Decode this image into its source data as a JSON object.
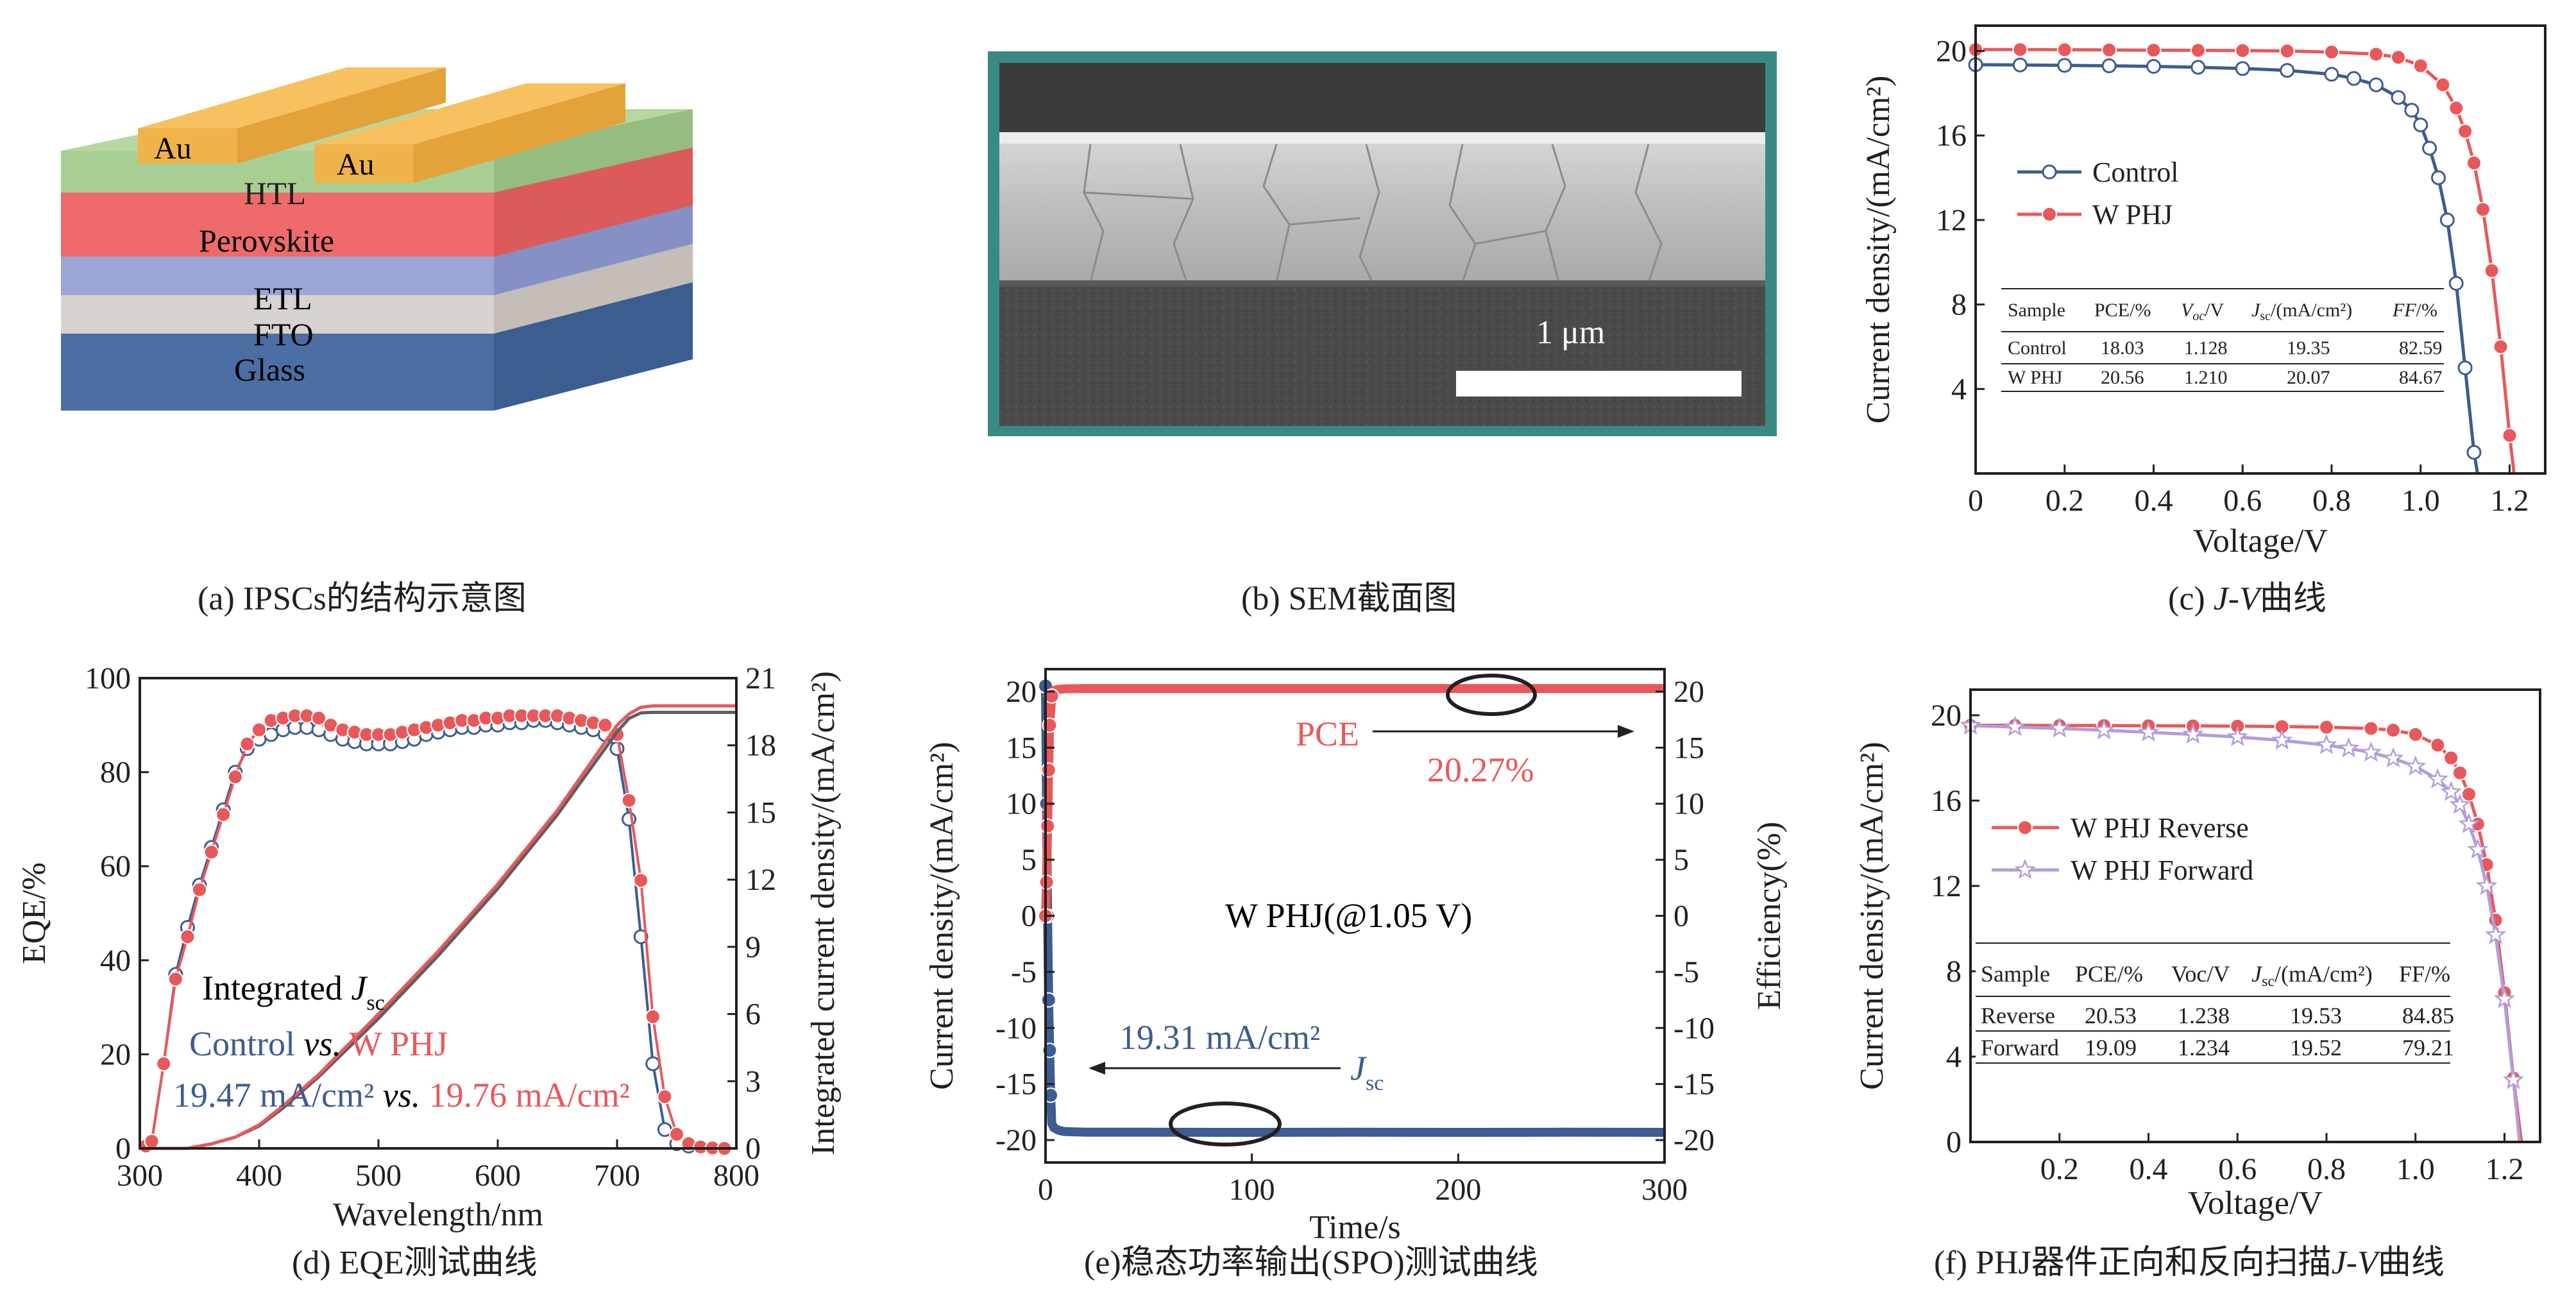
{
  "colors": {
    "blue": "#3d5c8f",
    "red": "#e8585a",
    "pink": "#f08080",
    "lavender": "#b39ddb",
    "dark": "#231f20",
    "grey": "#5f5f5f"
  },
  "panel_a": {
    "caption": "(a) IPSCs的结构示意图",
    "layers": [
      "Au",
      "Au",
      "HTL",
      "Perovskite",
      "ETL",
      "FTO",
      "Glass"
    ]
  },
  "panel_b": {
    "caption": "(b) SEM截面图",
    "scale_bar": "1 μm"
  },
  "panel_c": {
    "caption_prefix": "(c) ",
    "caption_italic": "J-V",
    "caption_suffix": "曲线"
  },
  "panel_d": {
    "caption": "(d) EQE测试曲线"
  },
  "panel_e": {
    "caption": "(e)稳态功率输出(SPO)测试曲线"
  },
  "panel_f": {
    "caption_prefix": "(f) PHJ器件正向和反向扫描",
    "caption_italic": "J-V",
    "caption_suffix": "曲线"
  },
  "chart_data": [
    {
      "id": "c",
      "type": "line",
      "xlabel": "Voltage/V",
      "ylabel": "Current density/(mA/cm²)",
      "xlim": [
        0,
        1.28
      ],
      "ylim": [
        0,
        21.2
      ],
      "xticks": [
        0,
        0.2,
        0.4,
        0.6,
        0.8,
        1.0,
        1.2
      ],
      "xtick_labels": [
        "0",
        "0.2",
        "0.4",
        "0.6",
        "0.8",
        "1.0",
        "1.2"
      ],
      "yticks": [
        4,
        8,
        12,
        16,
        20
      ],
      "series": [
        {
          "name": "Control",
          "color": "#3d5c8f",
          "marker": "open-circle",
          "x": [
            0,
            0.1,
            0.2,
            0.3,
            0.4,
            0.5,
            0.6,
            0.7,
            0.8,
            0.85,
            0.9,
            0.95,
            0.98,
            1.0,
            1.02,
            1.04,
            1.06,
            1.08,
            1.1,
            1.12,
            1.128
          ],
          "y": [
            19.35,
            19.34,
            19.32,
            19.3,
            19.27,
            19.23,
            19.17,
            19.08,
            18.9,
            18.7,
            18.4,
            17.8,
            17.2,
            16.5,
            15.4,
            14.0,
            12.0,
            9.0,
            5.0,
            1.0,
            0
          ]
        },
        {
          "name": "W PHJ",
          "color": "#e8585a",
          "marker": "filled-circle",
          "x": [
            0,
            0.1,
            0.2,
            0.3,
            0.4,
            0.5,
            0.6,
            0.7,
            0.8,
            0.9,
            0.95,
            1.0,
            1.05,
            1.08,
            1.1,
            1.12,
            1.14,
            1.16,
            1.18,
            1.2,
            1.21
          ],
          "y": [
            20.07,
            20.07,
            20.06,
            20.05,
            20.04,
            20.03,
            20.02,
            20.0,
            19.95,
            19.85,
            19.7,
            19.3,
            18.4,
            17.3,
            16.2,
            14.7,
            12.5,
            9.6,
            6.0,
            1.8,
            0
          ]
        }
      ],
      "table": {
        "headers": [
          "Sample",
          "PCE/%",
          "Voc/V",
          "Jsc/(mA/cm²)",
          "FF/%"
        ],
        "rows": [
          [
            "Control",
            "18.03",
            "1.128",
            "19.35",
            "82.59"
          ],
          [
            "W PHJ",
            "20.56",
            "1.210",
            "20.07",
            "84.67"
          ]
        ]
      }
    },
    {
      "id": "d",
      "type": "line",
      "xlabel": "Wavelength/nm",
      "ylabel": "EQE/%",
      "ylabel_right": "Integrated current density/(mA/cm²)",
      "xlim": [
        300,
        800
      ],
      "ylim": [
        0,
        100
      ],
      "ylim_right": [
        0,
        21
      ],
      "xticks": [
        300,
        400,
        500,
        600,
        700,
        800
      ],
      "yticks": [
        0,
        20,
        40,
        60,
        80,
        100
      ],
      "yticks_right": [
        0,
        3,
        6,
        9,
        12,
        15,
        18,
        21
      ],
      "series": [
        {
          "name": "Control EQE",
          "color": "#3d5c8f",
          "marker": "open-circle",
          "axis": "left",
          "x": [
            305,
            310,
            320,
            330,
            340,
            350,
            360,
            370,
            380,
            390,
            400,
            410,
            420,
            430,
            440,
            450,
            460,
            470,
            480,
            490,
            500,
            510,
            520,
            530,
            540,
            550,
            560,
            570,
            580,
            590,
            600,
            610,
            620,
            630,
            640,
            650,
            660,
            670,
            680,
            690,
            700,
            710,
            720,
            730,
            740,
            750,
            760,
            770,
            780,
            790
          ],
          "y": [
            0.5,
            1.5,
            18,
            37,
            47,
            56,
            64,
            72,
            80,
            85,
            87,
            88,
            89,
            89.5,
            89.5,
            89,
            88,
            87,
            86.5,
            86,
            86,
            86,
            86.5,
            87,
            88,
            88.5,
            89,
            89.5,
            89.5,
            90,
            90,
            90.5,
            90.5,
            91,
            91,
            90.5,
            90,
            89.5,
            89,
            88,
            85,
            70,
            45,
            18,
            4,
            1,
            0.5,
            0.2,
            0,
            0
          ]
        },
        {
          "name": "W PHJ EQE",
          "color": "#e8585a",
          "marker": "filled-circle",
          "axis": "left",
          "x": [
            305,
            310,
            320,
            330,
            340,
            350,
            360,
            370,
            380,
            390,
            400,
            410,
            420,
            430,
            440,
            450,
            460,
            470,
            480,
            490,
            500,
            510,
            520,
            530,
            540,
            550,
            560,
            570,
            580,
            590,
            600,
            610,
            620,
            630,
            640,
            650,
            660,
            670,
            680,
            690,
            700,
            710,
            720,
            730,
            740,
            750,
            760,
            770,
            780,
            790
          ],
          "y": [
            0.5,
            1.5,
            18,
            36,
            45,
            55,
            63,
            71,
            79,
            86,
            89,
            91,
            91.5,
            92,
            92,
            91.5,
            90,
            89,
            88.5,
            88,
            88,
            88,
            88.5,
            89,
            89.5,
            90,
            90.5,
            91,
            91,
            91.5,
            91.5,
            92,
            92,
            92,
            92,
            92,
            91.5,
            91,
            90.5,
            90,
            88,
            74,
            57,
            28,
            11,
            3,
            1,
            0.3,
            0.1,
            0
          ]
        },
        {
          "name": "Control Integrated Jsc",
          "color": "#5f5f5f",
          "axis": "right",
          "x": [
            300,
            340,
            360,
            380,
            400,
            420,
            450,
            500,
            550,
            600,
            650,
            700,
            710,
            720,
            730,
            740,
            750,
            800
          ],
          "y": [
            0,
            0,
            0.2,
            0.5,
            1.0,
            1.8,
            3.2,
            5.8,
            8.6,
            11.6,
            14.9,
            18.6,
            19.2,
            19.45,
            19.47,
            19.47,
            19.47,
            19.47
          ]
        },
        {
          "name": "W PHJ Integrated Jsc",
          "color": "#e8585a",
          "axis": "right",
          "x": [
            300,
            340,
            360,
            380,
            400,
            420,
            450,
            500,
            550,
            600,
            650,
            700,
            710,
            720,
            730,
            740,
            750,
            800
          ],
          "y": [
            0,
            0,
            0.2,
            0.5,
            1.05,
            1.9,
            3.3,
            6.0,
            8.8,
            11.8,
            15.1,
            18.9,
            19.4,
            19.7,
            19.76,
            19.76,
            19.76,
            19.76
          ]
        }
      ],
      "annotations": {
        "line1_prefix": "Integrated ",
        "line1_j": "J",
        "line1_sub": "sc",
        "control": "Control",
        "vs": "vs.",
        "wphj": "W PHJ",
        "control_value": "19.47 mA/cm²",
        "wphj_value": "19.76 mA/cm²"
      }
    },
    {
      "id": "e",
      "type": "line",
      "xlabel": "Time/s",
      "ylabel": "Current density/(mA/cm²)",
      "ylabel_right": "Efficiency(%)",
      "xlim": [
        0,
        300
      ],
      "ylim": [
        -22,
        22
      ],
      "ylim_right": [
        -22,
        22
      ],
      "xticks": [
        0,
        100,
        200,
        300
      ],
      "yticks": [
        -20,
        -15,
        -10,
        -5,
        0,
        5,
        10,
        15,
        20
      ],
      "yticks_right": [
        -20,
        -15,
        -10,
        -5,
        0,
        5,
        10,
        15,
        20
      ],
      "series": [
        {
          "name": "Jsc",
          "color": "#3d5c8f",
          "axis": "left",
          "x": [
            0,
            0.5,
            1,
            1.5,
            2,
            2.5,
            3,
            4,
            5,
            6,
            8,
            10,
            20,
            50,
            100,
            150,
            200,
            250,
            300
          ],
          "y": [
            20.5,
            10,
            0,
            -7.5,
            -12,
            -16,
            -18.5,
            -18.9,
            -19.0,
            -19.1,
            -19.2,
            -19.25,
            -19.3,
            -19.3,
            -19.31,
            -19.3,
            -19.31,
            -19.3,
            -19.31
          ]
        },
        {
          "name": "PCE",
          "color": "#e8585a",
          "axis": "right",
          "x": [
            0,
            0.5,
            1,
            1.5,
            2,
            3,
            4,
            6,
            10,
            20,
            50,
            100,
            150,
            200,
            250,
            300
          ],
          "y": [
            0,
            3,
            8,
            13,
            17,
            19.6,
            20.1,
            20.2,
            20.25,
            20.27,
            20.27,
            20.27,
            20.27,
            20.27,
            20.27,
            20.27
          ]
        }
      ],
      "annotations": {
        "pce_label": "PCE",
        "pce_value": "20.27%",
        "device": "W PHJ(@1.05 V)",
        "jsc_value": "19.31 mA/cm²",
        "jsc_j": "J",
        "jsc_sub": "sc"
      }
    },
    {
      "id": "f",
      "type": "line",
      "xlabel": "Voltage/V",
      "ylabel": "Current density/(mA/cm²)",
      "xlim": [
        0,
        1.28
      ],
      "ylim": [
        0,
        21.2
      ],
      "xticks": [
        0.2,
        0.4,
        0.6,
        0.8,
        1.0,
        1.2
      ],
      "xtick_labels": [
        "0.2",
        "0.4",
        "0.6",
        "0.8",
        "1.0",
        "1.2"
      ],
      "yticks": [
        0,
        4,
        8,
        12,
        16,
        20
      ],
      "series": [
        {
          "name": "W PHJ Reverse",
          "color": "#e8585a",
          "marker": "filled-circle",
          "x": [
            0,
            0.1,
            0.2,
            0.3,
            0.4,
            0.5,
            0.6,
            0.7,
            0.8,
            0.9,
            0.95,
            1.0,
            1.05,
            1.08,
            1.1,
            1.12,
            1.14,
            1.16,
            1.18,
            1.2,
            1.22,
            1.238
          ],
          "y": [
            19.53,
            19.53,
            19.52,
            19.52,
            19.51,
            19.5,
            19.49,
            19.47,
            19.44,
            19.38,
            19.3,
            19.1,
            18.6,
            18.0,
            17.3,
            16.3,
            14.9,
            13.0,
            10.4,
            7.0,
            3.0,
            0
          ]
        },
        {
          "name": "W PHJ Forward",
          "color": "#b39ddb",
          "marker": "open-star",
          "x": [
            0,
            0.1,
            0.2,
            0.3,
            0.4,
            0.5,
            0.6,
            0.7,
            0.8,
            0.85,
            0.9,
            0.95,
            1.0,
            1.05,
            1.08,
            1.1,
            1.12,
            1.14,
            1.16,
            1.18,
            1.2,
            1.22,
            1.234
          ],
          "y": [
            19.52,
            19.45,
            19.38,
            19.3,
            19.2,
            19.1,
            18.98,
            18.82,
            18.6,
            18.45,
            18.25,
            17.98,
            17.6,
            17.0,
            16.4,
            15.8,
            14.9,
            13.7,
            12.0,
            9.7,
            6.7,
            2.9,
            0
          ]
        }
      ],
      "table": {
        "headers": [
          "Sample",
          "PCE/%",
          "Voc/V",
          "Jsc/(mA/cm²)",
          "FF/%"
        ],
        "rows": [
          [
            "Reverse",
            "20.53",
            "1.238",
            "19.53",
            "84.85"
          ],
          [
            "Forward",
            "19.09",
            "1.234",
            "19.52",
            "79.21"
          ]
        ]
      }
    }
  ]
}
